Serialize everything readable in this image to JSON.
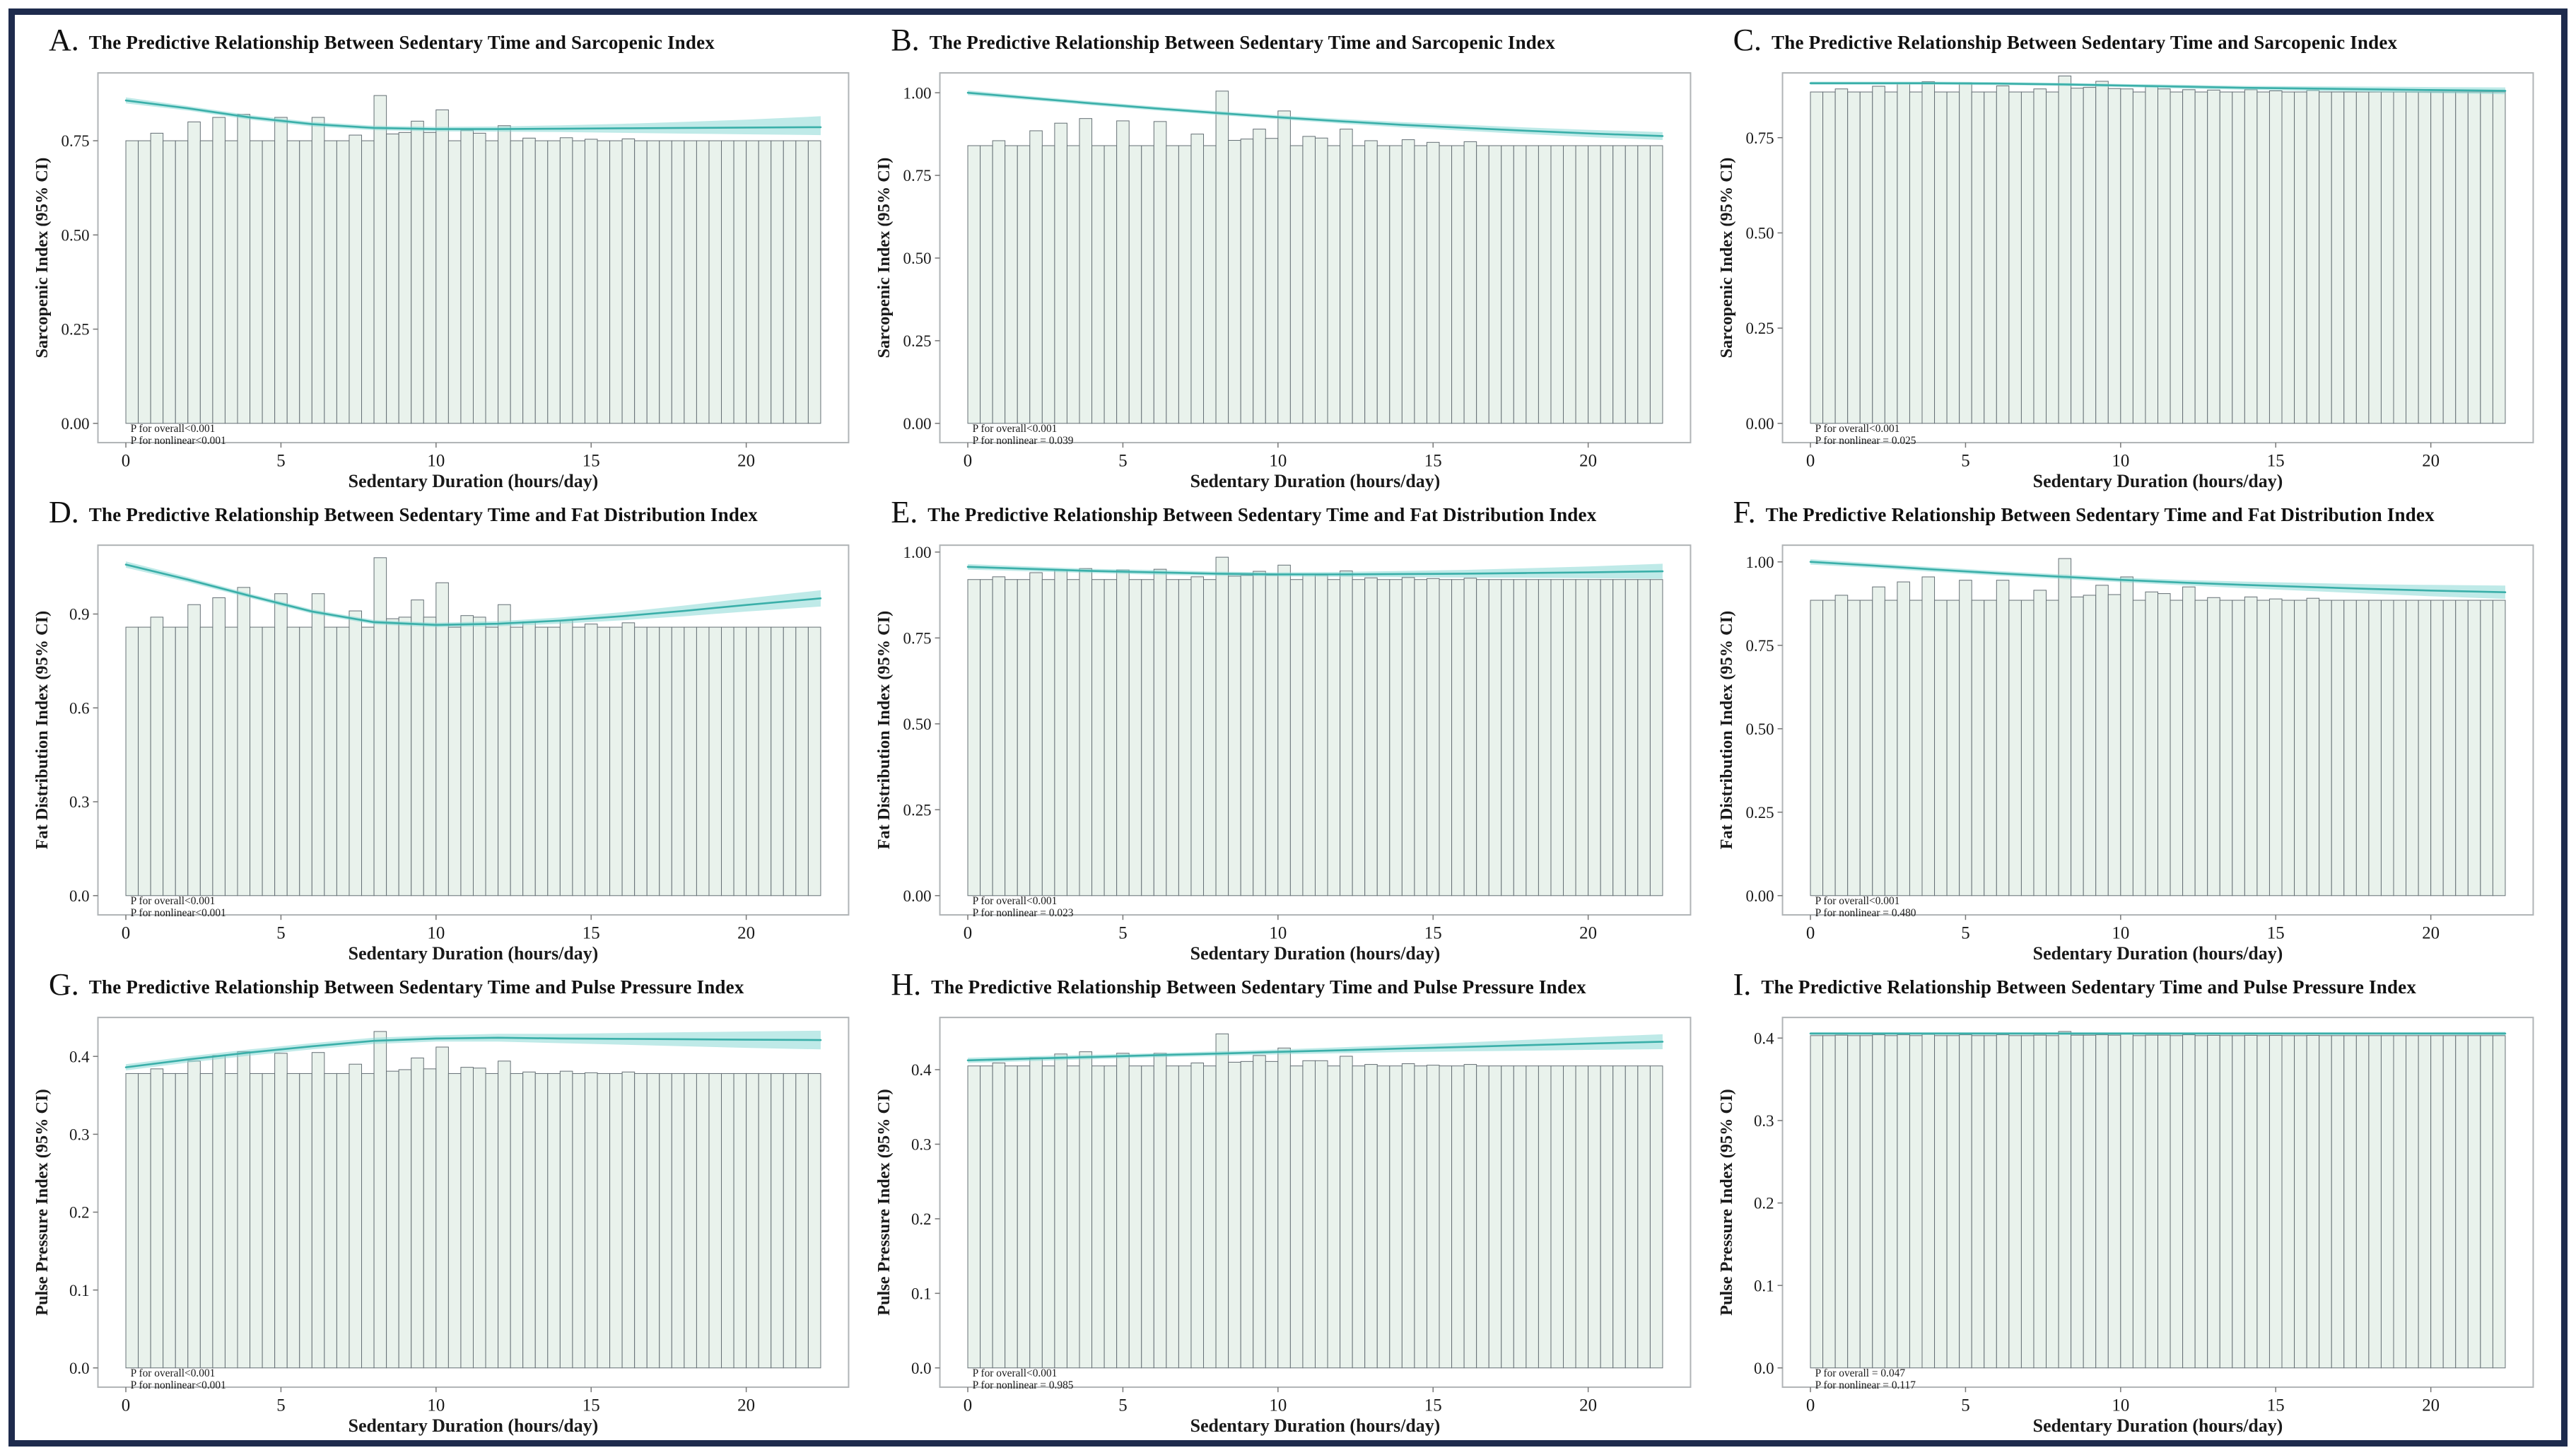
{
  "figure": {
    "border_color": "#1e2b4d",
    "background": "#ffffff"
  },
  "styles": {
    "bar_fill": "#e9f2ec",
    "bar_stroke": "#667076",
    "line_color": "#3aafa9",
    "ribbon_color": "#7fd6d2",
    "ribbon_opacity": 0.5,
    "frame_color": "#b0b4b6",
    "tick_color": "#777777",
    "text_color": "#1a1a1a"
  },
  "x_axis": {
    "label": "Sedentary Duration (hours/day)",
    "tick_values": [
      0,
      5,
      10,
      15,
      20
    ],
    "tick_labels": [
      "0",
      "5",
      "10",
      "15",
      "20"
    ],
    "range": [
      -0.9,
      23.3
    ]
  },
  "bar_layout": {
    "start": 0,
    "step": 0.4,
    "count": 56
  },
  "spike_x": [
    1.2,
    2.0,
    2.9,
    3.7,
    4.9,
    6.1,
    7.3,
    8.1,
    8.5,
    8.9,
    9.3,
    9.7,
    10.1,
    10.9,
    11.3,
    12.1,
    13.0,
    14.1,
    15.2,
    16.2
  ],
  "curve_x": [
    0,
    2,
    4,
    6,
    8,
    10,
    12,
    14,
    16,
    18,
    20,
    22.4
  ],
  "chart_data": [
    {
      "letter": "A.",
      "title": "The Predictive Relationship Between Sedentary Time and Sarcopenic Index",
      "type": "bar",
      "ylabel": "Sarcopenic Index (95% CI)",
      "xlabel": "Sedentary Duration (hours/day)",
      "ylim": [
        0,
        0.93
      ],
      "ytick_values": [
        0,
        0.25,
        0.5,
        0.75
      ],
      "ytick_labels": [
        "0.00",
        "0.25",
        "0.50",
        "0.75"
      ],
      "p_overall": "P for overall<0.001",
      "p_nonlinear": "P for nonlinear<0.001",
      "bar_base": 0.75,
      "spike_heights": [
        0.77,
        0.8,
        0.812,
        0.82,
        0.812,
        0.812,
        0.765,
        0.87,
        0.768,
        0.772,
        0.802,
        0.772,
        0.832,
        0.778,
        0.77,
        0.79,
        0.757,
        0.758,
        0.754,
        0.755
      ],
      "curve_y": [
        0.857,
        0.836,
        0.812,
        0.794,
        0.784,
        0.781,
        0.781,
        0.782,
        0.783,
        0.784,
        0.785,
        0.786
      ],
      "ci_low": [
        0.849,
        0.83,
        0.806,
        0.788,
        0.778,
        0.775,
        0.774,
        0.773,
        0.771,
        0.769,
        0.767,
        0.765
      ],
      "ci_high": [
        0.865,
        0.842,
        0.818,
        0.8,
        0.79,
        0.787,
        0.788,
        0.791,
        0.795,
        0.8,
        0.806,
        0.815
      ]
    },
    {
      "letter": "B.",
      "title": "The Predictive Relationship Between Sedentary Time and Sarcopenic Index",
      "type": "bar",
      "ylabel": "Sarcopenic Index (95% CI)",
      "xlabel": "Sedentary Duration (hours/day)",
      "ylim": [
        0,
        1.06
      ],
      "ytick_values": [
        0,
        0.25,
        0.5,
        0.75,
        1.0
      ],
      "ytick_labels": [
        "0.00",
        "0.25",
        "0.50",
        "0.75",
        "1.00"
      ],
      "p_overall": "P for overall<0.001",
      "p_nonlinear": "P for nonlinear = 0.039",
      "bar_base": 0.84,
      "spike_heights": [
        0.855,
        0.885,
        0.908,
        0.922,
        0.915,
        0.913,
        0.875,
        1.005,
        0.856,
        0.86,
        0.89,
        0.862,
        0.945,
        0.868,
        0.863,
        0.89,
        0.855,
        0.858,
        0.85,
        0.852
      ],
      "curve_y": [
        1.0,
        0.984,
        0.968,
        0.953,
        0.939,
        0.926,
        0.914,
        0.903,
        0.894,
        0.885,
        0.877,
        0.869
      ],
      "ci_low": [
        0.993,
        0.978,
        0.962,
        0.947,
        0.933,
        0.92,
        0.907,
        0.895,
        0.885,
        0.875,
        0.866,
        0.857
      ],
      "ci_high": [
        1.007,
        0.99,
        0.974,
        0.959,
        0.945,
        0.932,
        0.921,
        0.911,
        0.903,
        0.895,
        0.888,
        0.881
      ]
    },
    {
      "letter": "C.",
      "title": "The Predictive Relationship Between Sedentary Time and Sarcopenic Index",
      "type": "bar",
      "ylabel": "Sarcopenic Index (95% CI)",
      "xlabel": "Sedentary Duration (hours/day)",
      "ylim": [
        0,
        0.92
      ],
      "ytick_values": [
        0,
        0.25,
        0.5,
        0.75
      ],
      "ytick_labels": [
        "0.00",
        "0.25",
        "0.50",
        "0.75"
      ],
      "p_overall": "P for overall<0.001",
      "p_nonlinear": "P for nonlinear = 0.025",
      "bar_base": 0.87,
      "spike_heights": [
        0.878,
        0.885,
        0.893,
        0.897,
        0.894,
        0.886,
        0.878,
        0.912,
        0.88,
        0.882,
        0.898,
        0.879,
        0.878,
        0.884,
        0.878,
        0.876,
        0.875,
        0.876,
        0.873,
        0.874
      ],
      "curve_y": [
        0.893,
        0.893,
        0.893,
        0.892,
        0.89,
        0.887,
        0.884,
        0.881,
        0.879,
        0.877,
        0.875,
        0.873
      ],
      "ci_low": [
        0.889,
        0.889,
        0.889,
        0.888,
        0.886,
        0.883,
        0.879,
        0.876,
        0.873,
        0.87,
        0.867,
        0.864
      ],
      "ci_high": [
        0.897,
        0.897,
        0.897,
        0.896,
        0.894,
        0.891,
        0.889,
        0.886,
        0.885,
        0.884,
        0.883,
        0.882
      ]
    },
    {
      "letter": "D.",
      "title": "The Predictive Relationship Between Sedentary Time and Fat Distribution Index",
      "type": "bar",
      "ylabel": "Fat Distribution Index (95% CI)",
      "xlabel": "Sedentary Duration (hours/day)",
      "ylim": [
        0,
        1.12
      ],
      "ytick_values": [
        0,
        0.3,
        0.6,
        0.9
      ],
      "ytick_labels": [
        "0.0",
        "0.3",
        "0.6",
        "0.9"
      ],
      "p_overall": "P for overall<0.001",
      "p_nonlinear": "P for nonlinear<0.001",
      "bar_base": 0.858,
      "spike_heights": [
        0.89,
        0.93,
        0.952,
        0.985,
        0.965,
        0.965,
        0.91,
        1.08,
        0.885,
        0.89,
        0.945,
        0.89,
        1.0,
        0.895,
        0.89,
        0.93,
        0.875,
        0.88,
        0.868,
        0.872
      ],
      "curve_y": [
        1.058,
        1.01,
        0.958,
        0.908,
        0.874,
        0.865,
        0.869,
        0.879,
        0.893,
        0.91,
        0.929,
        0.95
      ],
      "ci_low": [
        1.048,
        1.002,
        0.951,
        0.901,
        0.867,
        0.858,
        0.861,
        0.869,
        0.88,
        0.893,
        0.908,
        0.924
      ],
      "ci_high": [
        1.068,
        1.018,
        0.965,
        0.915,
        0.881,
        0.872,
        0.877,
        0.889,
        0.906,
        0.927,
        0.95,
        0.976
      ]
    },
    {
      "letter": "E.",
      "title": "The Predictive Relationship Between Sedentary Time and Fat Distribution Index",
      "type": "bar",
      "ylabel": "Fat Distribution Index (95% CI)",
      "xlabel": "Sedentary Duration (hours/day)",
      "ylim": [
        0,
        1.02
      ],
      "ytick_values": [
        0,
        0.25,
        0.5,
        0.75,
        1.0
      ],
      "ytick_labels": [
        "0.00",
        "0.25",
        "0.50",
        "0.75",
        "1.00"
      ],
      "p_overall": "P for overall<0.001",
      "p_nonlinear": "P for nonlinear = 0.023",
      "bar_base": 0.92,
      "spike_heights": [
        0.928,
        0.94,
        0.948,
        0.952,
        0.948,
        0.95,
        0.928,
        0.985,
        0.93,
        0.932,
        0.944,
        0.933,
        0.962,
        0.934,
        0.933,
        0.945,
        0.925,
        0.926,
        0.923,
        0.924
      ],
      "curve_y": [
        0.957,
        0.951,
        0.945,
        0.941,
        0.937,
        0.935,
        0.935,
        0.936,
        0.937,
        0.939,
        0.941,
        0.944
      ],
      "ci_low": [
        0.949,
        0.944,
        0.939,
        0.934,
        0.931,
        0.929,
        0.928,
        0.927,
        0.926,
        0.925,
        0.924,
        0.922
      ],
      "ci_high": [
        0.965,
        0.958,
        0.951,
        0.948,
        0.943,
        0.941,
        0.942,
        0.945,
        0.948,
        0.953,
        0.958,
        0.966
      ]
    },
    {
      "letter": "F.",
      "title": "The Predictive Relationship Between Sedentary Time and Fat Distribution Index",
      "type": "bar",
      "ylabel": "Fat Distribution Index (95% CI)",
      "xlabel": "Sedentary Duration (hours/day)",
      "ylim": [
        0,
        1.05
      ],
      "ytick_values": [
        0,
        0.25,
        0.5,
        0.75,
        1.0
      ],
      "ytick_labels": [
        "0.00",
        "0.25",
        "0.50",
        "0.75",
        "1.00"
      ],
      "p_overall": "P for overall<0.001",
      "p_nonlinear": "P for nonlinear = 0.480",
      "bar_base": 0.885,
      "spike_heights": [
        0.9,
        0.925,
        0.94,
        0.955,
        0.945,
        0.945,
        0.915,
        1.01,
        0.895,
        0.9,
        0.93,
        0.902,
        0.955,
        0.91,
        0.905,
        0.925,
        0.893,
        0.895,
        0.889,
        0.891
      ],
      "curve_y": [
        1.0,
        0.989,
        0.977,
        0.966,
        0.956,
        0.946,
        0.938,
        0.931,
        0.925,
        0.919,
        0.914,
        0.909
      ],
      "ci_low": [
        0.992,
        0.982,
        0.97,
        0.959,
        0.949,
        0.939,
        0.93,
        0.921,
        0.913,
        0.905,
        0.897,
        0.889
      ],
      "ci_high": [
        1.008,
        0.996,
        0.984,
        0.973,
        0.963,
        0.953,
        0.946,
        0.941,
        0.937,
        0.933,
        0.931,
        0.929
      ]
    },
    {
      "letter": "G.",
      "title": "The Predictive Relationship Between Sedentary Time and Pulse Pressure Index",
      "type": "bar",
      "ylabel": "Pulse Pressure Index (95% CI)",
      "xlabel": "Sedentary Duration (hours/day)",
      "ylim": [
        0,
        0.45
      ],
      "ytick_values": [
        0,
        0.1,
        0.2,
        0.3,
        0.4
      ],
      "ytick_labels": [
        "0.0",
        "0.1",
        "0.2",
        "0.3",
        "0.4"
      ],
      "p_overall": "P for overall<0.001",
      "p_nonlinear": "P for nonlinear<0.001",
      "bar_base": 0.378,
      "spike_heights": [
        0.384,
        0.394,
        0.401,
        0.406,
        0.404,
        0.405,
        0.39,
        0.432,
        0.381,
        0.383,
        0.398,
        0.384,
        0.412,
        0.386,
        0.385,
        0.394,
        0.38,
        0.381,
        0.379,
        0.38
      ],
      "curve_y": [
        0.386,
        0.396,
        0.405,
        0.413,
        0.42,
        0.423,
        0.424,
        0.423,
        0.4225,
        0.422,
        0.4215,
        0.421
      ],
      "ci_low": [
        0.382,
        0.392,
        0.401,
        0.409,
        0.416,
        0.419,
        0.419,
        0.417,
        0.415,
        0.413,
        0.411,
        0.409
      ],
      "ci_high": [
        0.39,
        0.4,
        0.409,
        0.417,
        0.424,
        0.427,
        0.429,
        0.429,
        0.43,
        0.431,
        0.432,
        0.433
      ]
    },
    {
      "letter": "H.",
      "title": "The Predictive Relationship Between Sedentary Time and Pulse Pressure Index",
      "type": "bar",
      "ylabel": "Pulse Pressure Index (95% CI)",
      "xlabel": "Sedentary Duration (hours/day)",
      "ylim": [
        0,
        0.47
      ],
      "ytick_values": [
        0,
        0.1,
        0.2,
        0.3,
        0.4
      ],
      "ytick_labels": [
        "0.0",
        "0.1",
        "0.2",
        "0.3",
        "0.4"
      ],
      "p_overall": "P for overall<0.001",
      "p_nonlinear": "P for nonlinear = 0.985",
      "bar_base": 0.405,
      "spike_heights": [
        0.409,
        0.416,
        0.421,
        0.424,
        0.422,
        0.422,
        0.409,
        0.448,
        0.41,
        0.411,
        0.419,
        0.411,
        0.429,
        0.412,
        0.412,
        0.418,
        0.407,
        0.408,
        0.406,
        0.407
      ],
      "curve_y": [
        0.4125,
        0.4148,
        0.417,
        0.4193,
        0.4215,
        0.4238,
        0.426,
        0.4283,
        0.4305,
        0.4328,
        0.435,
        0.4375
      ],
      "ci_low": [
        0.409,
        0.4115,
        0.414,
        0.4165,
        0.4185,
        0.4205,
        0.422,
        0.4235,
        0.4245,
        0.4255,
        0.4265,
        0.4275
      ],
      "ci_high": [
        0.416,
        0.418,
        0.42,
        0.422,
        0.4245,
        0.427,
        0.43,
        0.433,
        0.4365,
        0.44,
        0.4435,
        0.4475
      ]
    },
    {
      "letter": "I.",
      "title": "The Predictive Relationship Between Sedentary Time and Pulse Pressure Index",
      "type": "bar",
      "ylabel": "Pulse Pressure Index (95% CI)",
      "xlabel": "Sedentary Duration (hours/day)",
      "ylim": [
        0,
        0.425
      ],
      "ytick_values": [
        0,
        0.1,
        0.2,
        0.3,
        0.4
      ],
      "ytick_labels": [
        "0.0",
        "0.1",
        "0.2",
        "0.3",
        "0.4"
      ],
      "p_overall": "P for overall = 0.047",
      "p_nonlinear": "P for nonlinear = 0.117",
      "bar_base": 0.403,
      "spike_heights": [
        0.4035,
        0.404,
        0.404,
        0.4045,
        0.404,
        0.404,
        0.4035,
        0.408,
        0.4035,
        0.4035,
        0.404,
        0.4035,
        0.405,
        0.4035,
        0.4035,
        0.404,
        0.4033,
        0.4033,
        0.4032,
        0.4032
      ],
      "curve_y": [
        0.4055,
        0.4055,
        0.4055,
        0.4055,
        0.4055,
        0.4055,
        0.4055,
        0.4055,
        0.4055,
        0.4055,
        0.4055,
        0.4055
      ],
      "ci_low": [
        0.404,
        0.404,
        0.404,
        0.404,
        0.404,
        0.404,
        0.404,
        0.404,
        0.404,
        0.404,
        0.404,
        0.4035
      ],
      "ci_high": [
        0.407,
        0.407,
        0.407,
        0.407,
        0.407,
        0.407,
        0.407,
        0.407,
        0.407,
        0.407,
        0.407,
        0.4075
      ]
    }
  ]
}
